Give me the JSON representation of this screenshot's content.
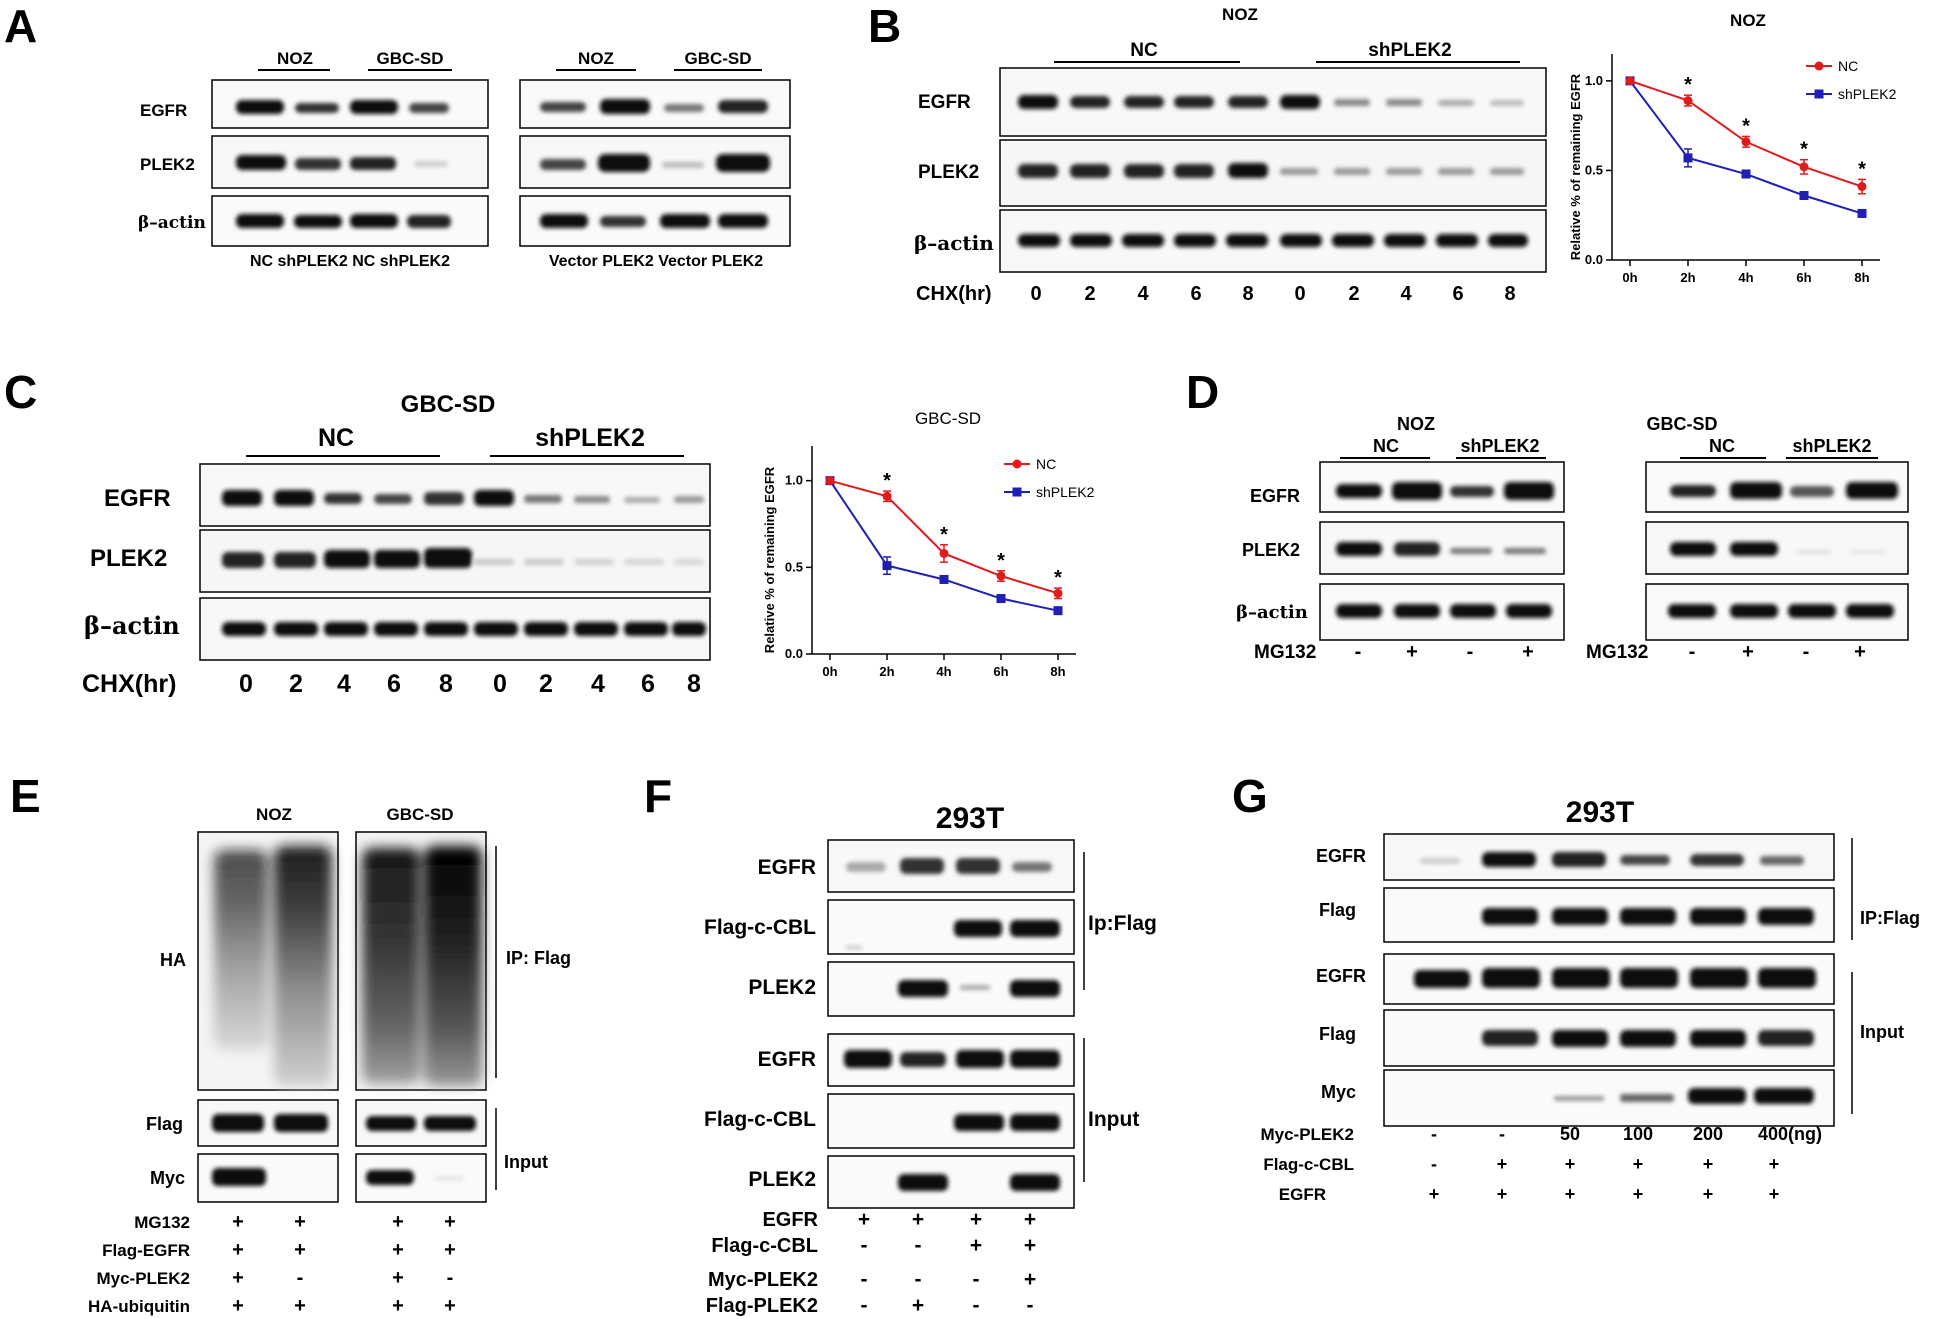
{
  "panel_letters": [
    "A",
    "B",
    "C",
    "D",
    "E",
    "F",
    "G"
  ],
  "panelA": {
    "left_groups": [
      "NOZ",
      "GBC-SD"
    ],
    "right_groups": [
      "NOZ",
      "GBC-SD"
    ],
    "rows": [
      "EGFR",
      "PLEK2",
      "β–actin"
    ],
    "left_lanes": "NC shPLEK2 NC shPLEK2",
    "right_lanes": "Vector PLEK2 Vector PLEK2"
  },
  "panelB": {
    "title": "NOZ",
    "groups": [
      "NC",
      "shPLEK2"
    ],
    "rows": [
      "EGFR",
      "PLEK2",
      "β–actin"
    ],
    "chx_label": "CHX(hr)",
    "chx_values": [
      "0",
      "2",
      "4",
      "6",
      "8",
      "0",
      "2",
      "4",
      "6",
      "8"
    ]
  },
  "panelC": {
    "title": "GBC-SD",
    "groups": [
      "NC",
      "shPLEK2"
    ],
    "rows": [
      "EGFR",
      "PLEK2",
      "β–actin"
    ],
    "chx_label": "CHX(hr)",
    "chx_values": [
      "0",
      "2",
      "4",
      "6",
      "8",
      "0",
      "2",
      "4",
      "6",
      "8"
    ]
  },
  "panelD": {
    "left_title": "NOZ",
    "right_title": "GBC-SD",
    "groups": [
      "NC",
      "shPLEK2"
    ],
    "rows": [
      "EGFR",
      "PLEK2",
      "β–actin"
    ],
    "mg_label": "MG132",
    "mg_values": [
      "-",
      "+",
      "-",
      "+"
    ]
  },
  "panelE": {
    "groups": [
      "NOZ",
      "GBC-SD"
    ],
    "rows": [
      "HA",
      "Flag",
      "Myc"
    ],
    "ip_label": "IP: Flag",
    "input_label": "Input",
    "conditions": [
      {
        "label": "MG132",
        "values": [
          "+",
          "+",
          "+",
          "+"
        ]
      },
      {
        "label": "Flag-EGFR",
        "values": [
          "+",
          "+",
          "+",
          "+"
        ]
      },
      {
        "label": "Myc-PLEK2",
        "values": [
          "+",
          "-",
          "+",
          "-"
        ]
      },
      {
        "label": "HA-ubiquitin",
        "values": [
          "+",
          "+",
          "+",
          "+"
        ]
      }
    ]
  },
  "panelF": {
    "title": "293T",
    "rows": [
      "EGFR",
      "Flag-c-CBL",
      "PLEK2",
      "EGFR",
      "Flag-c-CBL",
      "PLEK2"
    ],
    "ip_label": "Ip:Flag",
    "input_label": "Input",
    "conditions": [
      {
        "label": "EGFR",
        "values": [
          "+",
          "+",
          "+",
          "+"
        ]
      },
      {
        "label": "Flag-c-CBL",
        "values": [
          "-",
          "-",
          "+",
          "+"
        ]
      },
      {
        "label": "Myc-PLEK2",
        "values": [
          "-",
          "-",
          "-",
          "+"
        ]
      },
      {
        "label": "Flag-PLEK2",
        "values": [
          "-",
          "+",
          "-",
          "-"
        ]
      }
    ]
  },
  "panelG": {
    "title": "293T",
    "rows": [
      "EGFR",
      "Flag",
      "EGFR",
      "Flag",
      "Myc"
    ],
    "ip_label": "IP:Flag",
    "input_label": "Input",
    "conditions": [
      {
        "label": "Myc-PLEK2",
        "values": [
          "-",
          "-",
          "50",
          "100",
          "200",
          "400(ng)"
        ]
      },
      {
        "label": "Flag-c-CBL",
        "values": [
          "-",
          "+",
          "+",
          "+",
          "+",
          "+"
        ]
      },
      {
        "label": "EGFR",
        "values": [
          "+",
          "+",
          "+",
          "+",
          "+",
          "+"
        ]
      }
    ]
  },
  "chart_data": [
    {
      "type": "line",
      "title": "NOZ",
      "ylabel": "Relative % of remaining EGFR",
      "xlabel": "",
      "categories": [
        "0h",
        "2h",
        "4h",
        "6h",
        "8h"
      ],
      "yticks": [
        "0.0",
        "0.5",
        "1.0"
      ],
      "ylim": [
        0,
        1.15
      ],
      "series": [
        {
          "name": "NC",
          "color": "#e31a1c",
          "values": [
            1.0,
            0.89,
            0.66,
            0.52,
            0.41
          ],
          "errors": [
            0,
            0.03,
            0.03,
            0.04,
            0.04
          ],
          "sig": [
            "",
            "*",
            "*",
            "*",
            "*"
          ]
        },
        {
          "name": "shPLEK2",
          "color": "#1f1fb4",
          "values": [
            1.0,
            0.57,
            0.48,
            0.36,
            0.26
          ],
          "errors": [
            0,
            0.05,
            0.02,
            0.01,
            0.02
          ],
          "sig": [
            "",
            "",
            "",
            "",
            ""
          ]
        }
      ],
      "legend": "top-right"
    },
    {
      "type": "line",
      "title": "GBC-SD",
      "ylabel": "Relative % of remaining EGFR",
      "xlabel": "",
      "categories": [
        "0h",
        "2h",
        "4h",
        "6h",
        "8h"
      ],
      "yticks": [
        "0.0",
        "0.5",
        "1.0"
      ],
      "ylim": [
        0,
        1.2
      ],
      "series": [
        {
          "name": "NC",
          "color": "#e31a1c",
          "values": [
            1.0,
            0.91,
            0.58,
            0.45,
            0.35
          ],
          "errors": [
            0,
            0.03,
            0.05,
            0.03,
            0.03
          ],
          "sig": [
            "",
            "*",
            "*",
            "*",
            "*"
          ]
        },
        {
          "name": "shPLEK2",
          "color": "#1f1fb4",
          "values": [
            1.0,
            0.51,
            0.43,
            0.32,
            0.25
          ],
          "errors": [
            0,
            0.05,
            0.01,
            0.02,
            0.01
          ],
          "sig": [
            "",
            "",
            "",
            "",
            ""
          ]
        }
      ],
      "legend": "top-right"
    }
  ]
}
